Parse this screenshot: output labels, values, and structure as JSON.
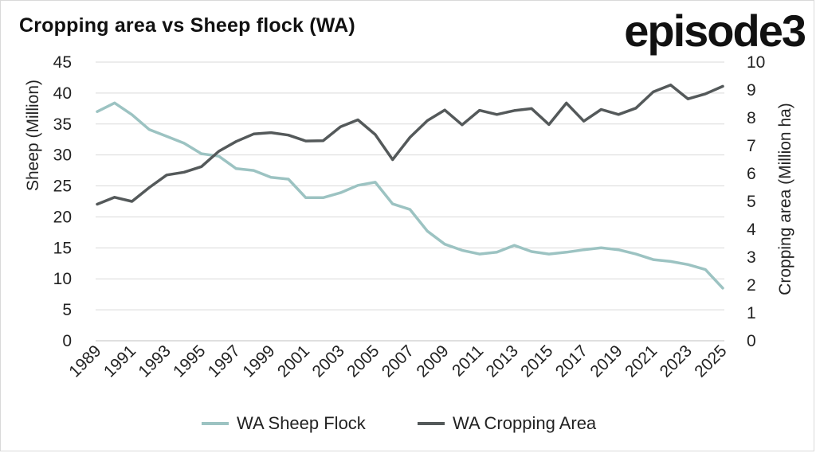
{
  "title": "Cropping area vs Sheep flock (WA)",
  "logo_text": "episode3",
  "chart_data": {
    "type": "line",
    "title": "Cropping area vs Sheep flock (WA)",
    "x": [
      1989,
      1990,
      1991,
      1992,
      1993,
      1994,
      1995,
      1996,
      1997,
      1998,
      1999,
      2000,
      2001,
      2002,
      2003,
      2004,
      2005,
      2006,
      2007,
      2008,
      2009,
      2010,
      2011,
      2012,
      2013,
      2014,
      2015,
      2016,
      2017,
      2018,
      2019,
      2020,
      2021,
      2022,
      2023,
      2024,
      2025
    ],
    "x_tick_labels": [
      "1989",
      "1991",
      "1993",
      "1995",
      "1997",
      "1999",
      "2001",
      "2003",
      "2005",
      "2007",
      "2009",
      "2011",
      "2013",
      "2015",
      "2017",
      "2019",
      "2021",
      "2023",
      "2025"
    ],
    "ylabel_left": "Sheep (Million)",
    "ylabel_right": "Cropping area (Million ha)",
    "ylim_left": [
      0,
      45
    ],
    "ylim_right": [
      0,
      10
    ],
    "y_ticks_left": [
      "0",
      "5",
      "10",
      "15",
      "20",
      "25",
      "30",
      "35",
      "40",
      "45"
    ],
    "y_ticks_right": [
      "0",
      "1",
      "2",
      "3",
      "4",
      "5",
      "6",
      "7",
      "8",
      "9",
      "10"
    ],
    "grid": true,
    "legend_position": "bottom",
    "series": [
      {
        "name": "WA Sheep Flock",
        "axis": "left",
        "color": "#9cc3c2",
        "values": [
          37.0,
          38.4,
          36.5,
          34.1,
          33.0,
          31.9,
          30.2,
          29.8,
          27.8,
          27.5,
          26.4,
          26.1,
          23.1,
          23.1,
          23.9,
          25.1,
          25.6,
          22.1,
          21.2,
          17.7,
          15.6,
          14.6,
          14.0,
          14.3,
          15.4,
          14.4,
          14.0,
          14.3,
          14.7,
          15.0,
          14.7,
          14.0,
          13.1,
          12.8,
          12.3,
          11.5,
          8.5
        ]
      },
      {
        "name": "WA Cropping Area",
        "axis": "right",
        "color": "#54595a",
        "values": [
          4.9,
          5.15,
          5.0,
          5.5,
          5.95,
          6.05,
          6.25,
          6.8,
          7.15,
          7.42,
          7.47,
          7.38,
          7.17,
          7.18,
          7.68,
          7.93,
          7.4,
          6.5,
          7.3,
          7.9,
          8.28,
          7.75,
          8.27,
          8.12,
          8.26,
          8.33,
          7.76,
          8.53,
          7.88,
          8.3,
          8.12,
          8.35,
          8.93,
          9.18,
          8.68,
          8.86,
          9.13
        ]
      }
    ]
  }
}
